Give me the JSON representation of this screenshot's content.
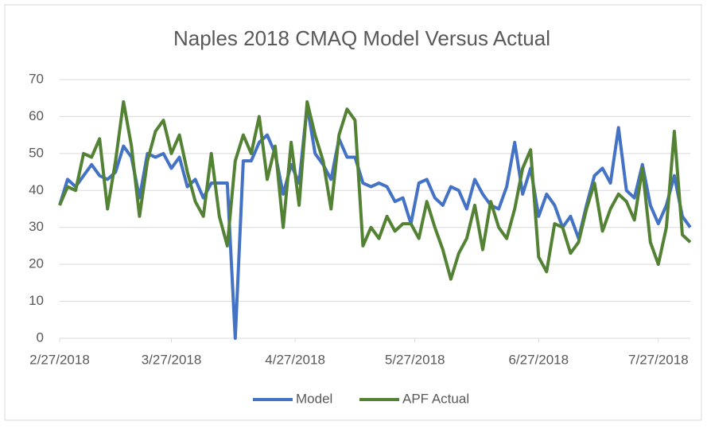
{
  "chart_data": {
    "type": "line",
    "title": "Naples 2018 CMAQ Model Versus Actual",
    "x": [
      "2018-02-27",
      "2018-03-01",
      "2018-03-03",
      "2018-03-05",
      "2018-03-07",
      "2018-03-09",
      "2018-03-11",
      "2018-03-13",
      "2018-03-15",
      "2018-03-17",
      "2018-03-19",
      "2018-03-21",
      "2018-03-23",
      "2018-03-25",
      "2018-03-27",
      "2018-03-29",
      "2018-03-31",
      "2018-04-02",
      "2018-04-04",
      "2018-04-06",
      "2018-04-08",
      "2018-04-10",
      "2018-04-12",
      "2018-04-14",
      "2018-04-16",
      "2018-04-18",
      "2018-04-20",
      "2018-04-22",
      "2018-04-24",
      "2018-04-26",
      "2018-04-28",
      "2018-04-30",
      "2018-05-02",
      "2018-05-04",
      "2018-05-06",
      "2018-05-08",
      "2018-05-10",
      "2018-05-12",
      "2018-05-14",
      "2018-05-16",
      "2018-05-18",
      "2018-05-20",
      "2018-05-22",
      "2018-05-24",
      "2018-05-26",
      "2018-05-28",
      "2018-05-30",
      "2018-06-01",
      "2018-06-03",
      "2018-06-05",
      "2018-06-07",
      "2018-06-09",
      "2018-06-11",
      "2018-06-13",
      "2018-06-15",
      "2018-06-17",
      "2018-06-19",
      "2018-06-21",
      "2018-06-23",
      "2018-06-25",
      "2018-06-27",
      "2018-06-29",
      "2018-07-01",
      "2018-07-03",
      "2018-07-05",
      "2018-07-07",
      "2018-07-09",
      "2018-07-11",
      "2018-07-13",
      "2018-07-15",
      "2018-07-17",
      "2018-07-19",
      "2018-07-21",
      "2018-07-23",
      "2018-07-25",
      "2018-07-27",
      "2018-07-29",
      "2018-07-31",
      "2018-08-02",
      "2018-08-04"
    ],
    "series": [
      {
        "name": "Model",
        "color": "#4472c4",
        "values": [
          36,
          43,
          41,
          44,
          47,
          44,
          43,
          45,
          52,
          49,
          38,
          50,
          49,
          50,
          46,
          49,
          41,
          43,
          38,
          42,
          42,
          42,
          0,
          48,
          48,
          53,
          55,
          50,
          39,
          47,
          42,
          63,
          50,
          47,
          43,
          54,
          49,
          49,
          42,
          41,
          42,
          41,
          37,
          38,
          31,
          42,
          43,
          38,
          36,
          41,
          40,
          35,
          43,
          39,
          36,
          35,
          41,
          53,
          39,
          46,
          33,
          39,
          36,
          30,
          33,
          27,
          36,
          44,
          46,
          42,
          57,
          40,
          38,
          47,
          36,
          31,
          36,
          44,
          33,
          30
        ]
      },
      {
        "name": "APF Actual",
        "color": "#548235",
        "values": [
          36,
          41,
          40,
          50,
          49,
          54,
          35,
          48,
          64,
          52,
          33,
          48,
          56,
          59,
          50,
          55,
          45,
          37,
          33,
          50,
          33,
          25,
          48,
          55,
          50,
          60,
          43,
          52,
          30,
          53,
          36,
          64,
          55,
          48,
          35,
          55,
          62,
          59,
          25,
          30,
          27,
          33,
          29,
          31,
          31,
          27,
          37,
          30,
          24,
          16,
          23,
          27,
          36,
          24,
          37,
          30,
          27,
          35,
          46,
          51,
          22,
          18,
          31,
          30,
          23,
          26,
          35,
          42,
          29,
          35,
          39,
          37,
          32,
          46,
          26,
          20,
          30,
          56,
          28,
          26
        ]
      }
    ],
    "xlim": [
      "2018-02-27",
      "2018-08-04"
    ],
    "xticks": [
      {
        "value": "2018-02-27",
        "label": "2/27/2018"
      },
      {
        "value": "2018-03-27",
        "label": "3/27/2018"
      },
      {
        "value": "2018-04-27",
        "label": "4/27/2018"
      },
      {
        "value": "2018-05-27",
        "label": "5/27/2018"
      },
      {
        "value": "2018-06-27",
        "label": "6/27/2018"
      },
      {
        "value": "2018-07-27",
        "label": "7/27/2018"
      }
    ],
    "ylim": [
      0,
      70
    ],
    "yticks": [
      0,
      10,
      20,
      30,
      40,
      50,
      60,
      70
    ],
    "grid": true,
    "legend": "bottom"
  }
}
